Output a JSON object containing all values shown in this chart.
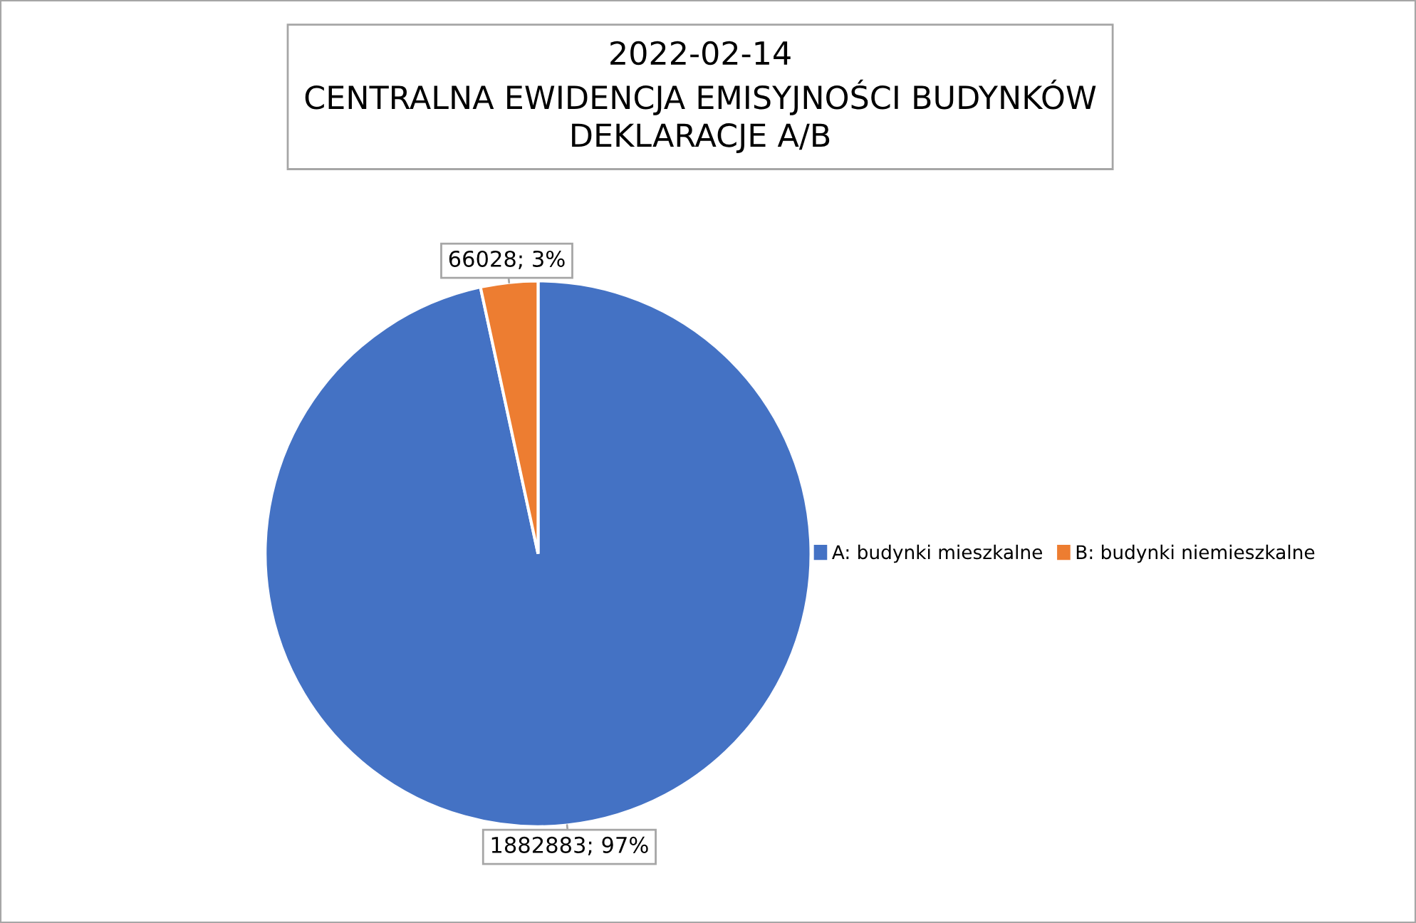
{
  "chart_data": {
    "type": "pie",
    "title": "2022-02-14\nCENTRALNA EWIDENCJA EMISYJNOŚCI BUDYNKÓW\nDEKLARACJE A/B",
    "categories": [
      "A: budynki mieszkalne",
      "B: budynki niemieszkalne"
    ],
    "values": [
      1882883,
      66028
    ],
    "colors": [
      "#4472c4",
      "#ed7d31"
    ],
    "value_labels": [
      "1882883; 97%",
      "66028; 3%"
    ],
    "legend": "right"
  }
}
